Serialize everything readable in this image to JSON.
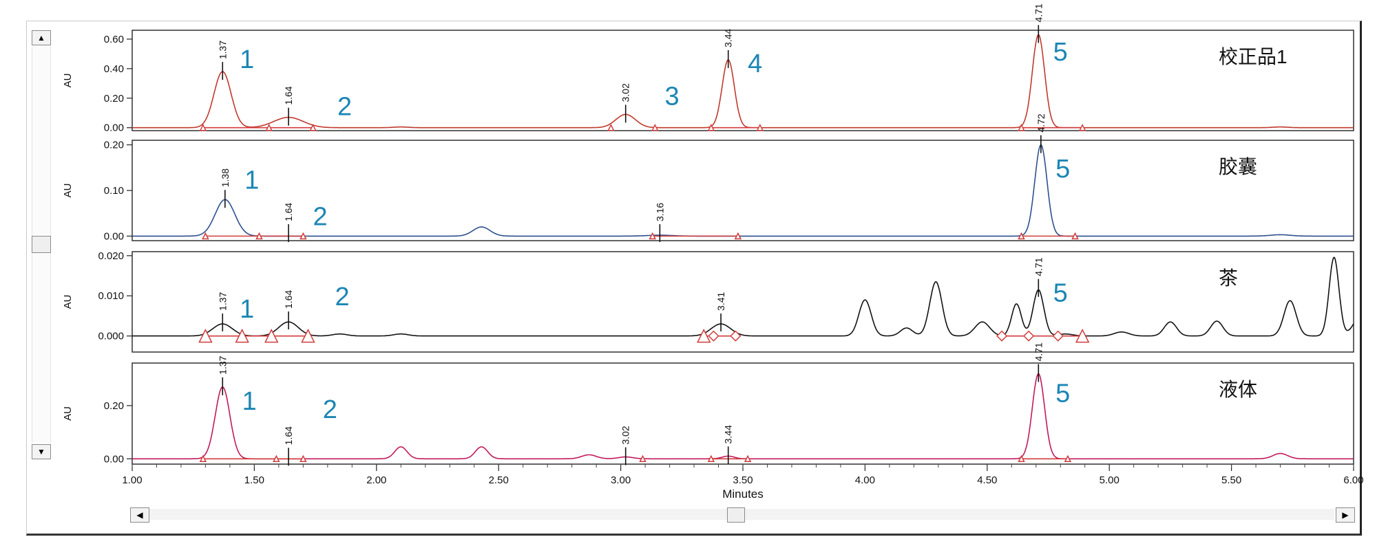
{
  "window": {
    "scroll_up_icon": "▲",
    "scroll_down_icon": "▼",
    "scroll_left_icon": "◀",
    "scroll_right_icon": "▶"
  },
  "chart_data": {
    "type": "line",
    "xlabel": "Minutes",
    "xlim": [
      1.0,
      6.0
    ],
    "xticks": [
      "1.00",
      "1.50",
      "2.00",
      "2.50",
      "3.00",
      "3.50",
      "4.00",
      "4.50",
      "5.00",
      "5.50",
      "6.00"
    ],
    "panels": [
      {
        "name": "校正品1",
        "ylabel": "AU",
        "color": "#c0392b",
        "ylim": [
          -0.02,
          0.66
        ],
        "yticks": [
          0.0,
          0.2,
          0.4,
          0.6
        ],
        "ytick_labels": [
          "0.00",
          "0.20",
          "0.40",
          "0.60"
        ],
        "peaks": [
          [
            1.37,
            0.38,
            0.035
          ],
          [
            1.64,
            0.07,
            0.06
          ],
          [
            2.1,
            0.005,
            0.03
          ],
          [
            3.02,
            0.09,
            0.04
          ],
          [
            3.44,
            0.46,
            0.025
          ],
          [
            4.71,
            0.63,
            0.025
          ],
          [
            5.7,
            0.005,
            0.03
          ]
        ],
        "peak_labels": [
          {
            "t": "1.37",
            "x": 1.37,
            "y": 0.38,
            "num": "1",
            "nx": 1.44,
            "ny": 0.47
          },
          {
            "t": "1.64",
            "x": 1.64,
            "y": 0.07,
            "num": "2",
            "nx": 1.84,
            "ny": 0.15
          },
          {
            "t": "3.02",
            "x": 3.02,
            "y": 0.09,
            "num": "3",
            "nx": 3.18,
            "ny": 0.22
          },
          {
            "t": "3.44",
            "x": 3.44,
            "y": 0.46,
            "num": "4",
            "nx": 3.52,
            "ny": 0.44
          },
          {
            "t": "4.71",
            "x": 4.71,
            "y": 0.63,
            "num": "5",
            "nx": 4.77,
            "ny": 0.52
          }
        ],
        "baselines": [
          [
            1.29,
            1.74
          ],
          [
            3.37,
            3.57
          ],
          [
            4.64,
            4.89
          ]
        ],
        "markers": [
          [
            1.29,
            "t"
          ],
          [
            1.56,
            "t"
          ],
          [
            1.74,
            "t"
          ],
          [
            2.96,
            "t"
          ],
          [
            3.14,
            "t"
          ],
          [
            3.37,
            "t"
          ],
          [
            3.57,
            "t"
          ],
          [
            4.64,
            "t"
          ],
          [
            4.89,
            "t"
          ]
        ]
      },
      {
        "name": "胶囊",
        "ylabel": "AU",
        "color": "#2c4f8f",
        "ylim": [
          -0.01,
          0.21
        ],
        "yticks": [
          0.0,
          0.1,
          0.2
        ],
        "ytick_labels": [
          "0.00",
          "0.10",
          "0.20"
        ],
        "peaks": [
          [
            1.38,
            0.08,
            0.04
          ],
          [
            2.43,
            0.02,
            0.035
          ],
          [
            3.16,
            0.002,
            0.05
          ],
          [
            4.72,
            0.2,
            0.025
          ],
          [
            5.7,
            0.003,
            0.04
          ]
        ],
        "peak_labels": [
          {
            "t": "1.38",
            "x": 1.38,
            "y": 0.08,
            "num": "1",
            "nx": 1.46,
            "ny": 0.125
          },
          {
            "t": "1.64",
            "x": 1.64,
            "y": 0.005,
            "num": "2",
            "nx": 1.74,
            "ny": 0.045
          },
          {
            "t": "3.16",
            "x": 3.16,
            "y": 0.005,
            "num": "",
            "nx": 0,
            "ny": 0
          },
          {
            "t": "4.72",
            "x": 4.72,
            "y": 0.2,
            "num": "5",
            "nx": 4.78,
            "ny": 0.15
          }
        ],
        "baselines": [
          [
            1.3,
            1.7
          ],
          [
            3.13,
            3.48
          ],
          [
            4.64,
            4.86
          ]
        ],
        "markers": [
          [
            1.3,
            "t"
          ],
          [
            1.52,
            "t"
          ],
          [
            1.7,
            "t"
          ],
          [
            3.13,
            "t"
          ],
          [
            3.48,
            "t"
          ],
          [
            4.64,
            "t"
          ],
          [
            4.86,
            "t"
          ]
        ]
      },
      {
        "name": "茶",
        "ylabel": "AU",
        "color": "#111111",
        "ylim": [
          -0.004,
          0.021
        ],
        "yticks": [
          0.0,
          0.01,
          0.02
        ],
        "ytick_labels": [
          "0.000",
          "0.010",
          "0.020"
        ],
        "peaks": [
          [
            1.37,
            0.003,
            0.04
          ],
          [
            1.64,
            0.0035,
            0.04
          ],
          [
            1.85,
            0.0005,
            0.03
          ],
          [
            2.1,
            0.0005,
            0.03
          ],
          [
            3.41,
            0.003,
            0.04
          ],
          [
            4.0,
            0.009,
            0.025
          ],
          [
            4.17,
            0.002,
            0.025
          ],
          [
            4.29,
            0.0135,
            0.025
          ],
          [
            4.48,
            0.0035,
            0.03
          ],
          [
            4.62,
            0.008,
            0.02
          ],
          [
            4.71,
            0.0115,
            0.022
          ],
          [
            4.82,
            0.0005,
            0.03
          ],
          [
            5.05,
            0.001,
            0.03
          ],
          [
            5.25,
            0.0035,
            0.025
          ],
          [
            5.44,
            0.0037,
            0.025
          ],
          [
            5.74,
            0.0088,
            0.025
          ],
          [
            5.92,
            0.0196,
            0.02
          ],
          [
            6.03,
            0.005,
            0.03
          ]
        ],
        "peak_labels": [
          {
            "t": "1.37",
            "x": 1.37,
            "y": 0.0032,
            "num": "1",
            "nx": 1.44,
            "ny": 0.007
          },
          {
            "t": "1.64",
            "x": 1.64,
            "y": 0.0037,
            "num": "2",
            "nx": 1.83,
            "ny": 0.01
          },
          {
            "t": "3.41",
            "x": 3.41,
            "y": 0.0032,
            "num": "",
            "nx": 0,
            "ny": 0
          },
          {
            "t": "4.71",
            "x": 4.71,
            "y": 0.0118,
            "num": "5",
            "nx": 4.77,
            "ny": 0.011
          }
        ],
        "baselines": [
          [
            1.3,
            1.72
          ],
          [
            3.34,
            3.47
          ],
          [
            4.56,
            4.89
          ]
        ],
        "markers": [
          [
            1.3,
            "t"
          ],
          [
            1.45,
            "t"
          ],
          [
            1.57,
            "t"
          ],
          [
            1.72,
            "t"
          ],
          [
            3.34,
            "t"
          ],
          [
            3.38,
            "d"
          ],
          [
            3.47,
            "d"
          ],
          [
            4.56,
            "d"
          ],
          [
            4.67,
            "d"
          ],
          [
            4.79,
            "d"
          ],
          [
            4.89,
            "t"
          ]
        ]
      },
      {
        "name": "液体",
        "ylabel": "AU",
        "color": "#c2185b",
        "ylim": [
          -0.02,
          0.36
        ],
        "yticks": [
          0.0,
          0.2
        ],
        "ytick_labels": [
          "0.00",
          "0.20"
        ],
        "peaks": [
          [
            1.37,
            0.27,
            0.03
          ],
          [
            2.1,
            0.045,
            0.025
          ],
          [
            2.43,
            0.045,
            0.025
          ],
          [
            2.87,
            0.015,
            0.03
          ],
          [
            3.02,
            0.007,
            0.03
          ],
          [
            3.44,
            0.01,
            0.025
          ],
          [
            4.71,
            0.32,
            0.025
          ],
          [
            5.7,
            0.02,
            0.03
          ]
        ],
        "peak_labels": [
          {
            "t": "1.37",
            "x": 1.37,
            "y": 0.27,
            "num": "1",
            "nx": 1.45,
            "ny": 0.22
          },
          {
            "t": "1.64",
            "x": 1.64,
            "y": 0.005,
            "num": "2",
            "nx": 1.78,
            "ny": 0.19
          },
          {
            "t": "3.02",
            "x": 3.02,
            "y": 0.007,
            "num": "",
            "nx": 0,
            "ny": 0
          },
          {
            "t": "3.44",
            "x": 3.44,
            "y": 0.01,
            "num": "",
            "nx": 0,
            "ny": 0
          },
          {
            "t": "4.71",
            "x": 4.71,
            "y": 0.32,
            "num": "5",
            "nx": 4.78,
            "ny": 0.25
          }
        ],
        "baselines": [
          [
            1.29,
            1.7
          ],
          [
            3.37,
            3.52
          ],
          [
            4.64,
            4.83
          ]
        ],
        "markers": [
          [
            1.29,
            "t"
          ],
          [
            1.59,
            "t"
          ],
          [
            1.7,
            "t"
          ],
          [
            3.09,
            "t"
          ],
          [
            3.37,
            "t"
          ],
          [
            3.52,
            "t"
          ],
          [
            4.64,
            "t"
          ],
          [
            4.83,
            "t"
          ]
        ]
      }
    ]
  }
}
